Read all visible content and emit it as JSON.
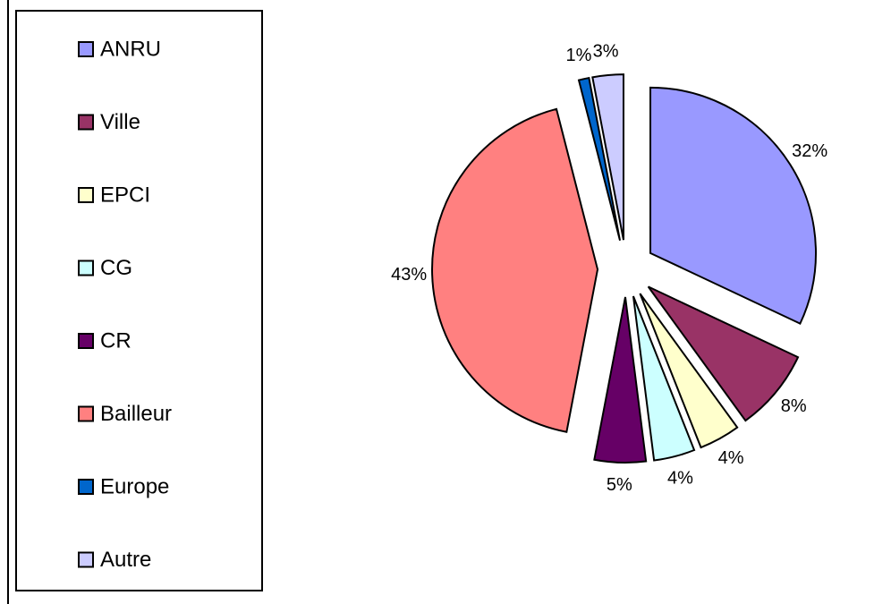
{
  "chart_data": {
    "type": "pie",
    "categories": [
      "ANRU",
      "Ville",
      "EPCI",
      "CG",
      "CR",
      "Bailleur",
      "Europe",
      "Autre"
    ],
    "values": [
      32,
      8,
      4,
      4,
      5,
      43,
      1,
      3
    ],
    "value_labels": [
      "32%",
      "8%",
      "4%",
      "4%",
      "5%",
      "43%",
      "1%",
      "3%"
    ],
    "colors": [
      "#9999ff",
      "#993366",
      "#ffffcc",
      "#ccffff",
      "#660066",
      "#ff8080",
      "#0066cc",
      "#ccccff"
    ],
    "legend": "left"
  }
}
